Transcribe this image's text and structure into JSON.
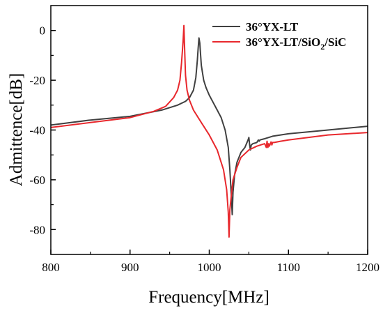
{
  "chart_data": {
    "type": "line",
    "title": "",
    "xlabel": "Frequency[MHz]",
    "ylabel": "Admittence[dB]",
    "xlim": [
      800,
      1200
    ],
    "ylim": [
      -90,
      10
    ],
    "xticks": [
      800,
      900,
      1000,
      1100,
      1200
    ],
    "yticks": [
      0,
      -20,
      -40,
      -60,
      -80
    ],
    "grid": false,
    "legend_position": "top-right",
    "series": [
      {
        "name": "36°YX-LT",
        "color": "#404040",
        "x": [
          800,
          850,
          900,
          940,
          960,
          970,
          975,
          980,
          983,
          985,
          986,
          987,
          988,
          990,
          993,
          996,
          1000,
          1005,
          1010,
          1015,
          1020,
          1024,
          1026,
          1028,
          1029,
          1030,
          1032,
          1035,
          1040,
          1045,
          1049,
          1050,
          1051,
          1052,
          1053,
          1055,
          1060,
          1062,
          1063,
          1064,
          1066,
          1070,
          1080,
          1100,
          1150,
          1200
        ],
        "values": [
          -38,
          -36,
          -34.5,
          -32,
          -30,
          -28.5,
          -27,
          -24,
          -19,
          -12,
          -7,
          -3,
          -5,
          -14,
          -20,
          -23,
          -26,
          -29,
          -32,
          -35,
          -40,
          -47,
          -56,
          -67,
          -74,
          -65,
          -58,
          -53,
          -49,
          -47,
          -44,
          -43,
          -46,
          -48,
          -46,
          -45.5,
          -45,
          -44,
          -44.5,
          -44,
          -43.8,
          -43.5,
          -42.5,
          -41.5,
          -40,
          -38.5
        ]
      },
      {
        "name": "36°YX-LT/SiO2/SiC",
        "name_base": "36°YX-LT/SiO",
        "name_sub": "2",
        "name_tail": "/SiC",
        "color": "#e8282d",
        "x": [
          800,
          850,
          900,
          930,
          945,
          955,
          960,
          963,
          965,
          967,
          968,
          969,
          970,
          972,
          975,
          980,
          990,
          1000,
          1010,
          1018,
          1022,
          1024,
          1025,
          1026,
          1028,
          1030,
          1035,
          1040,
          1050,
          1060,
          1070,
          1072,
          1073,
          1074,
          1075,
          1076,
          1078,
          1079,
          1080,
          1082,
          1090,
          1100,
          1150,
          1200
        ],
        "values": [
          -39,
          -37,
          -35,
          -32.5,
          -30.5,
          -27,
          -24,
          -20,
          -13,
          -4,
          2,
          -8,
          -18,
          -24,
          -28,
          -32,
          -37,
          -42,
          -48,
          -56,
          -64,
          -73,
          -83,
          -72,
          -66,
          -60,
          -55,
          -51,
          -48,
          -46.5,
          -45.5,
          -47,
          -44.5,
          -47,
          -45.5,
          -46.5,
          -44.8,
          -46,
          -45,
          -45,
          -44.5,
          -44,
          -42,
          -41
        ]
      }
    ]
  }
}
